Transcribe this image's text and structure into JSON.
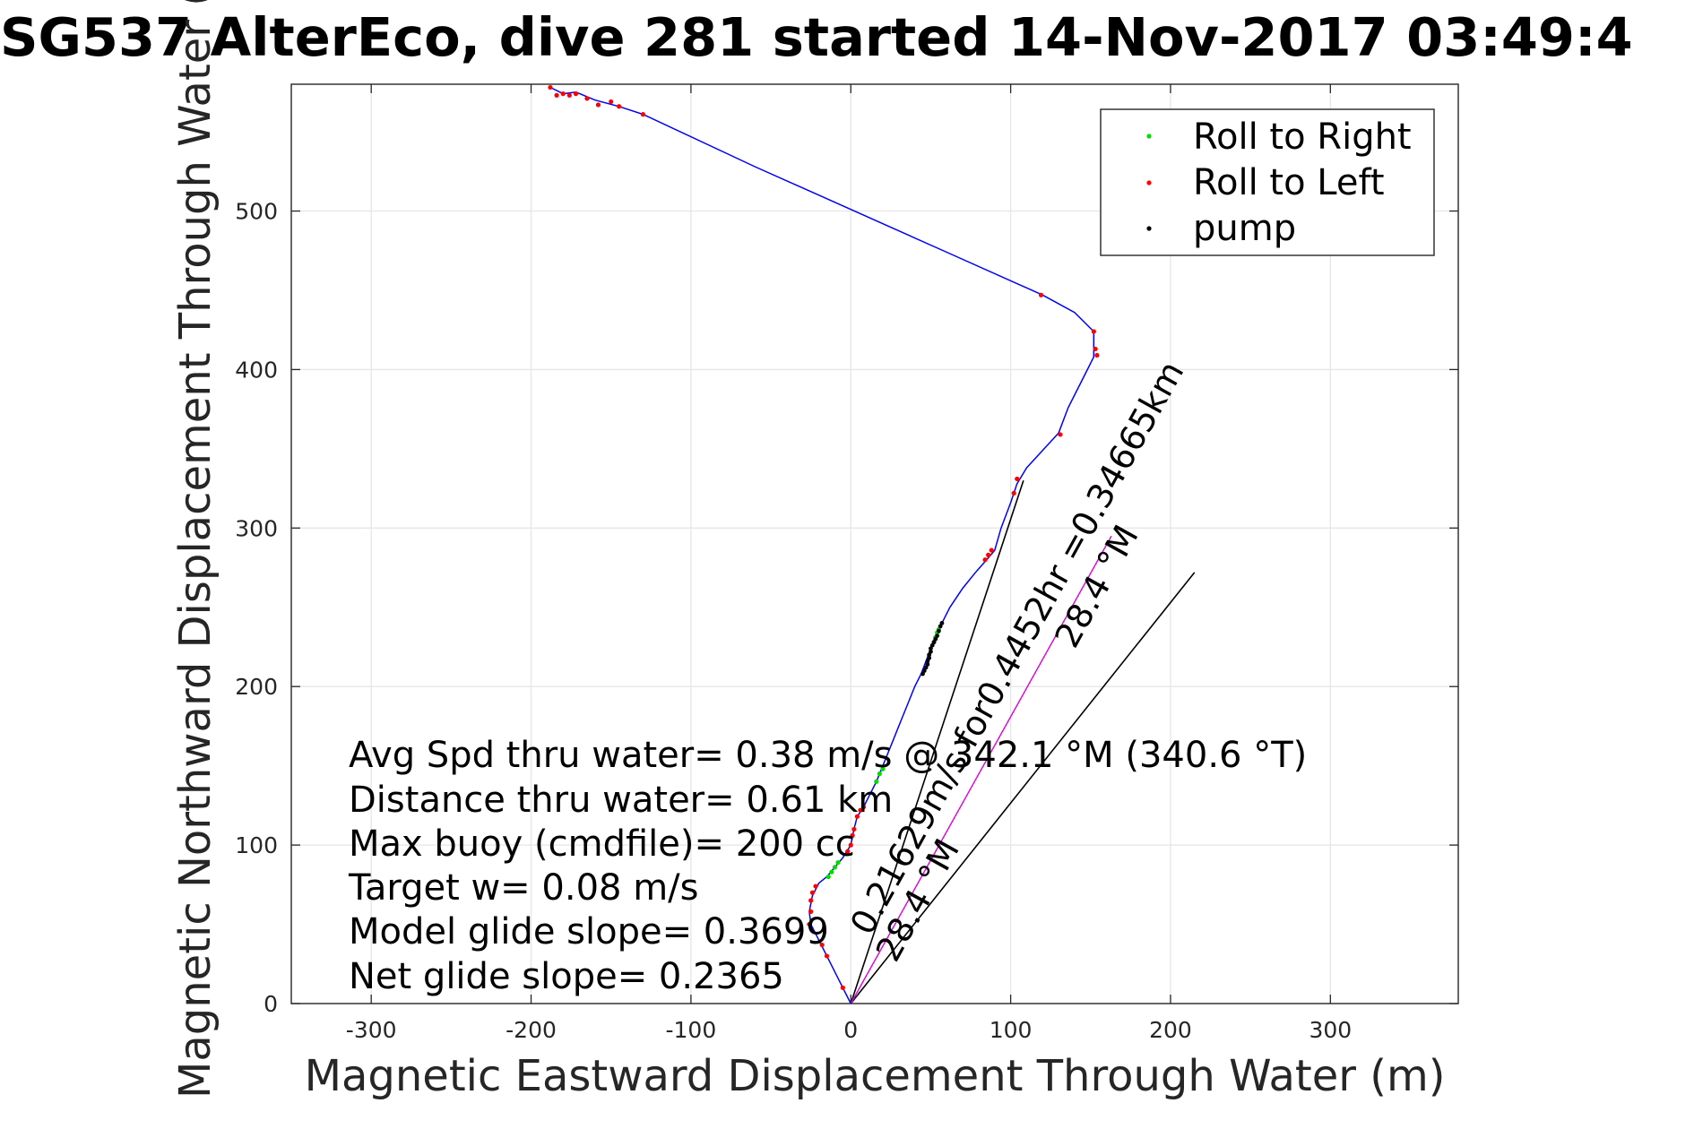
{
  "chart_data": {
    "type": "line",
    "title": "SG537 AlterEco, dive 281 started 14-Nov-2017 03:49:4",
    "xlabel": "Magnetic Eastward Displacement Through Water (m)",
    "ylabel": "Magnetic Northward Displacement Through Water (",
    "xlim": [
      -350,
      380
    ],
    "ylim": [
      0,
      580
    ],
    "xticks": [
      -300,
      -200,
      -100,
      0,
      100,
      200,
      300
    ],
    "xtick_labels": [
      "-300",
      "-200",
      "-100",
      "0",
      "100",
      "200",
      "300"
    ],
    "yticks": [
      0,
      100,
      200,
      300,
      400,
      500
    ],
    "ytick_labels": [
      "0",
      "100",
      "200",
      "300",
      "400",
      "500"
    ],
    "grid": true,
    "legend_position": "top-right",
    "legend": [
      {
        "label": "Roll to Right",
        "color": "#00dd00"
      },
      {
        "label": "Roll to Left",
        "color": "#ff0000"
      },
      {
        "label": "pump",
        "color": "#000000"
      }
    ],
    "track": {
      "color": "#0000ff",
      "points": [
        [
          0,
          0
        ],
        [
          -5,
          10
        ],
        [
          -10,
          20
        ],
        [
          -15,
          30
        ],
        [
          -20,
          40
        ],
        [
          -25,
          50
        ],
        [
          -26,
          58
        ],
        [
          -24,
          68
        ],
        [
          -20,
          76
        ],
        [
          -15,
          80
        ],
        [
          -10,
          86
        ],
        [
          -5,
          92
        ],
        [
          0,
          100
        ],
        [
          2,
          110
        ],
        [
          4,
          118
        ],
        [
          8,
          124
        ],
        [
          12,
          132
        ],
        [
          16,
          140
        ],
        [
          20,
          150
        ],
        [
          24,
          160
        ],
        [
          28,
          170
        ],
        [
          32,
          180
        ],
        [
          36,
          190
        ],
        [
          40,
          200
        ],
        [
          44,
          208
        ],
        [
          47,
          216
        ],
        [
          50,
          224
        ],
        [
          53,
          232
        ],
        [
          57,
          240
        ],
        [
          62,
          250
        ],
        [
          70,
          262
        ],
        [
          78,
          272
        ],
        [
          85,
          280
        ],
        [
          90,
          286
        ],
        [
          94,
          300
        ],
        [
          100,
          316
        ],
        [
          104,
          328
        ],
        [
          110,
          338
        ],
        [
          130,
          360
        ],
        [
          136,
          376
        ],
        [
          144,
          392
        ],
        [
          152,
          408
        ],
        [
          152,
          424
        ],
        [
          140,
          436
        ],
        [
          120,
          447
        ],
        [
          60,
          474
        ],
        [
          0,
          501
        ],
        [
          -60,
          528
        ],
        [
          -130,
          561
        ],
        [
          -145,
          566
        ],
        [
          -160,
          570
        ],
        [
          -172,
          575
        ],
        [
          -180,
          574
        ],
        [
          -188,
          578
        ]
      ]
    },
    "roll_right_points": [
      [
        16,
        140
      ],
      [
        18,
        145
      ],
      [
        20,
        148
      ],
      [
        -14,
        80
      ],
      [
        -12,
        83
      ],
      [
        -10,
        86
      ],
      [
        -8,
        89
      ],
      [
        52,
        228
      ],
      [
        53,
        231
      ],
      [
        54,
        234
      ],
      [
        55,
        236
      ]
    ],
    "roll_left_points": [
      [
        -5,
        10
      ],
      [
        -15,
        30
      ],
      [
        -18,
        37
      ],
      [
        -26,
        50
      ],
      [
        -25,
        58
      ],
      [
        -25,
        65
      ],
      [
        -24,
        70
      ],
      [
        -22,
        74
      ],
      [
        -2,
        96
      ],
      [
        0,
        100
      ],
      [
        1,
        106
      ],
      [
        2,
        110
      ],
      [
        4,
        118
      ],
      [
        6,
        122
      ],
      [
        8,
        124
      ],
      [
        84,
        280
      ],
      [
        86,
        283
      ],
      [
        88,
        286
      ],
      [
        102,
        322
      ],
      [
        104,
        331
      ],
      [
        152,
        424
      ],
      [
        153,
        413
      ],
      [
        154,
        409
      ],
      [
        131,
        359
      ],
      [
        119,
        447
      ],
      [
        -130,
        561
      ],
      [
        -145,
        566
      ],
      [
        -150,
        569
      ],
      [
        -158,
        567
      ],
      [
        -165,
        571
      ],
      [
        -172,
        574
      ],
      [
        -176,
        573
      ],
      [
        -180,
        574
      ],
      [
        -184,
        573
      ],
      [
        -188,
        578
      ]
    ],
    "pump_points": [
      [
        45,
        208
      ],
      [
        46,
        210
      ],
      [
        47,
        212
      ],
      [
        48,
        214
      ],
      [
        48,
        216
      ],
      [
        49,
        218
      ],
      [
        49,
        220
      ],
      [
        50,
        222
      ],
      [
        50,
        224
      ],
      [
        51,
        226
      ],
      [
        52,
        228
      ],
      [
        53,
        230
      ],
      [
        54,
        232
      ],
      [
        55,
        235
      ],
      [
        56,
        238
      ],
      [
        57,
        240
      ]
    ],
    "annotation_lines": [
      {
        "from": [
          0,
          0
        ],
        "to": [
          108,
          330
        ],
        "color": "#000000"
      },
      {
        "from": [
          0,
          0
        ],
        "to": [
          215,
          272
        ],
        "color": "#000000"
      }
    ],
    "magenta_line": {
      "from": [
        0,
        0
      ],
      "to": [
        163,
        295
      ],
      "color": "#dd00dd"
    },
    "rotated_labels": [
      {
        "text": "0.21629m/s for0.4452hr =0.34665km",
        "x": 12,
        "y": 42,
        "angle": 61
      },
      {
        "text": "28.4 °M",
        "x": 28,
        "y": 25,
        "angle": 61
      },
      {
        "text": "28.4 °M",
        "x": 140,
        "y": 223,
        "angle": 61
      }
    ],
    "annotations": [
      "Avg Spd thru water=  0.38 m/s @ 342.1 °M (340.6 °T)",
      "Distance thru water=  0.61 km",
      "Max buoy (cmdfile)= 200 cc",
      "Target w= 0.08 m/s",
      "Model glide slope= 0.3699",
      "Net glide slope= 0.2365"
    ]
  }
}
